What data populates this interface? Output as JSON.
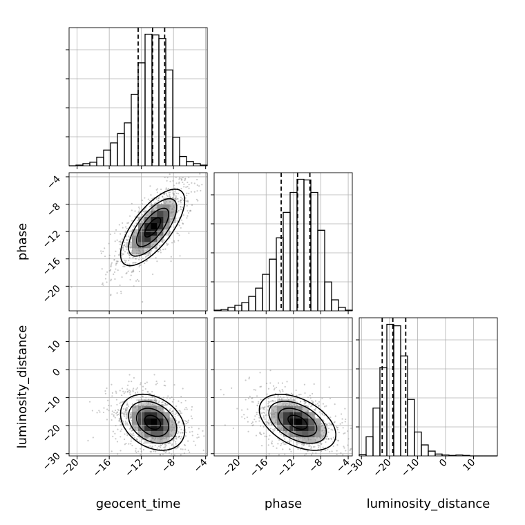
{
  "chart_data": {
    "type": "corner",
    "variables": [
      "geocent_time",
      "phase",
      "luminosity_distance"
    ],
    "axis_labels": {
      "x": [
        "geocent_time",
        "phase",
        "luminosity_distance"
      ],
      "y": [
        "phase",
        "luminosity_distance"
      ]
    },
    "ranges": {
      "geocent_time": [
        -21.0,
        -3.8
      ],
      "phase": [
        -23.6,
        -3.4
      ],
      "luminosity_distance": [
        -30.8,
        18.5
      ]
    },
    "ticks": {
      "geocent_time": [
        -20,
        -16,
        -12,
        -8,
        -4
      ],
      "phase": [
        -20,
        -16,
        -12,
        -8,
        -4
      ],
      "luminosity_distance": [
        -30,
        -20,
        -10,
        0,
        10
      ]
    },
    "tick_labels": {
      "geocent_time": [
        "−20",
        "−16",
        "−12",
        "−8",
        "−4"
      ],
      "phase": [
        "−20",
        "−16",
        "−12",
        "−8",
        "−4"
      ],
      "luminosity_distance": [
        "−30",
        "−20",
        "−10",
        "0",
        "10"
      ]
    },
    "quantiles": {
      "geocent_time": [
        -12.4,
        -10.6,
        -9.1
      ],
      "phase": [
        -13.8,
        -11.4,
        -9.6
      ],
      "luminosity_distance": [
        -22.6,
        -18.8,
        -14.2
      ]
    },
    "histograms": {
      "geocent_time": {
        "edges": [
          -21,
          -20.14,
          -19.28,
          -18.42,
          -17.56,
          -16.7,
          -15.84,
          -14.98,
          -14.12,
          -13.26,
          -12.4,
          -11.54,
          -10.68,
          -9.82,
          -8.96,
          -8.1,
          -7.24,
          -6.38,
          -5.52,
          -4.66,
          -3.8
        ],
        "counts": [
          0,
          1,
          3,
          5,
          12,
          22,
          32,
          45,
          60,
          100,
          144,
          184,
          183,
          178,
          134,
          40,
          13,
          6,
          3,
          1
        ]
      },
      "phase": {
        "edges": [
          -23.6,
          -22.59,
          -21.58,
          -20.57,
          -19.56,
          -18.55,
          -17.54,
          -16.53,
          -15.52,
          -14.51,
          -13.5,
          -12.49,
          -11.48,
          -10.47,
          -9.46,
          -8.45,
          -7.44,
          -6.43,
          -5.42,
          -4.41,
          -3.4
        ],
        "counts": [
          1,
          2,
          5,
          8,
          12,
          21,
          33,
          53,
          75,
          106,
          143,
          172,
          191,
          190,
          172,
          117,
          42,
          16,
          5,
          1
        ]
      },
      "luminosity_distance": {
        "edges": [
          -30.8,
          -28.34,
          -25.87,
          -23.41,
          -20.94,
          -18.48,
          -16.01,
          -13.55,
          -11.09,
          -8.62,
          -6.16,
          -3.69,
          -1.23,
          1.24,
          3.7,
          6.17,
          8.63,
          11.09,
          13.56,
          16.02,
          18.49
        ],
        "counts": [
          3,
          40,
          100,
          185,
          275,
          272,
          209,
          118,
          50,
          23,
          10,
          4,
          2,
          1,
          2,
          1,
          0,
          0,
          0,
          0
        ]
      }
    },
    "posteriors_2d": [
      {
        "x": "geocent_time",
        "y": "phase",
        "center": [
          -10.6,
          -11.4
        ],
        "sd": [
          2.0,
          2.8
        ],
        "corr": 0.7
      },
      {
        "x": "geocent_time",
        "y": "luminosity_distance",
        "center": [
          -10.6,
          -18.8
        ],
        "sd": [
          2.0,
          5.0
        ],
        "corr": -0.3
      },
      {
        "x": "phase",
        "y": "luminosity_distance",
        "center": [
          -11.4,
          -18.8
        ],
        "sd": [
          2.8,
          5.0
        ],
        "corr": -0.45
      }
    ],
    "contour_levels_sigma": [
      0.5,
      1.0,
      1.5,
      2.0
    ],
    "grid": true
  }
}
